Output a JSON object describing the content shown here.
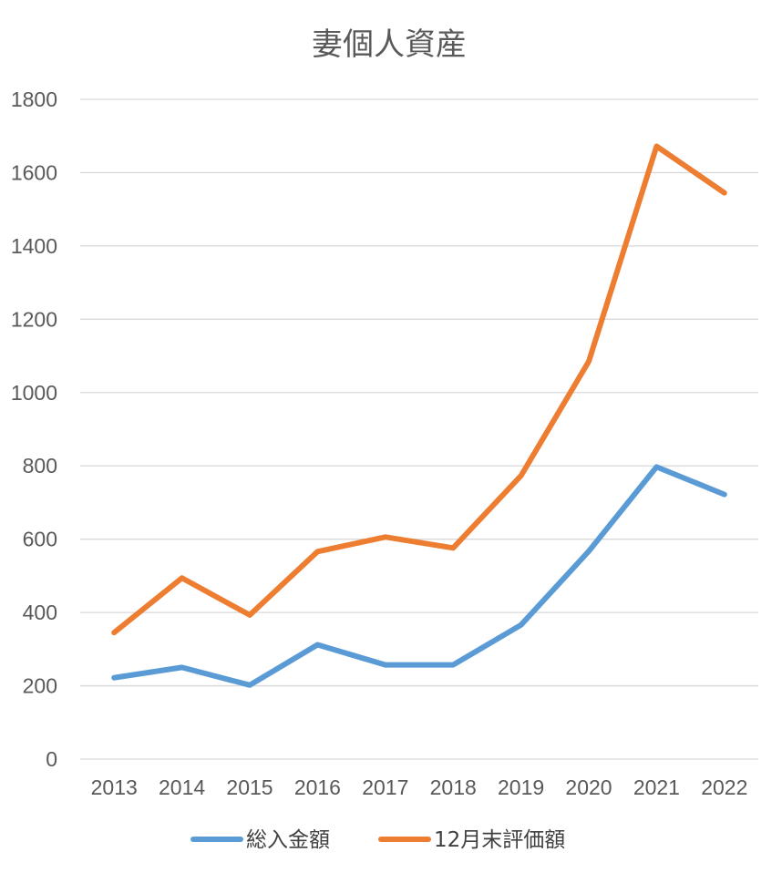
{
  "chart_data": {
    "type": "line",
    "title": "妻個人資産",
    "xlabel": "",
    "ylabel": "",
    "categories": [
      "2013",
      "2014",
      "2015",
      "2016",
      "2017",
      "2018",
      "2019",
      "2020",
      "2021",
      "2022"
    ],
    "ylim": [
      0,
      1800
    ],
    "yticks": [
      "0",
      "200",
      "400",
      "600",
      "800",
      "1000",
      "1200",
      "1400",
      "1600",
      "1800"
    ],
    "grid": true,
    "legend_position": "bottom",
    "series": [
      {
        "name": "総入金額",
        "color": "#5b9bd5",
        "values": [
          222,
          250,
          202,
          312,
          257,
          257,
          366,
          567,
          797,
          722
        ]
      },
      {
        "name": "12月末評価額",
        "color": "#ed7d31",
        "values": [
          345,
          494,
          393,
          566,
          606,
          576,
          773,
          1085,
          1672,
          1545
        ]
      }
    ]
  }
}
